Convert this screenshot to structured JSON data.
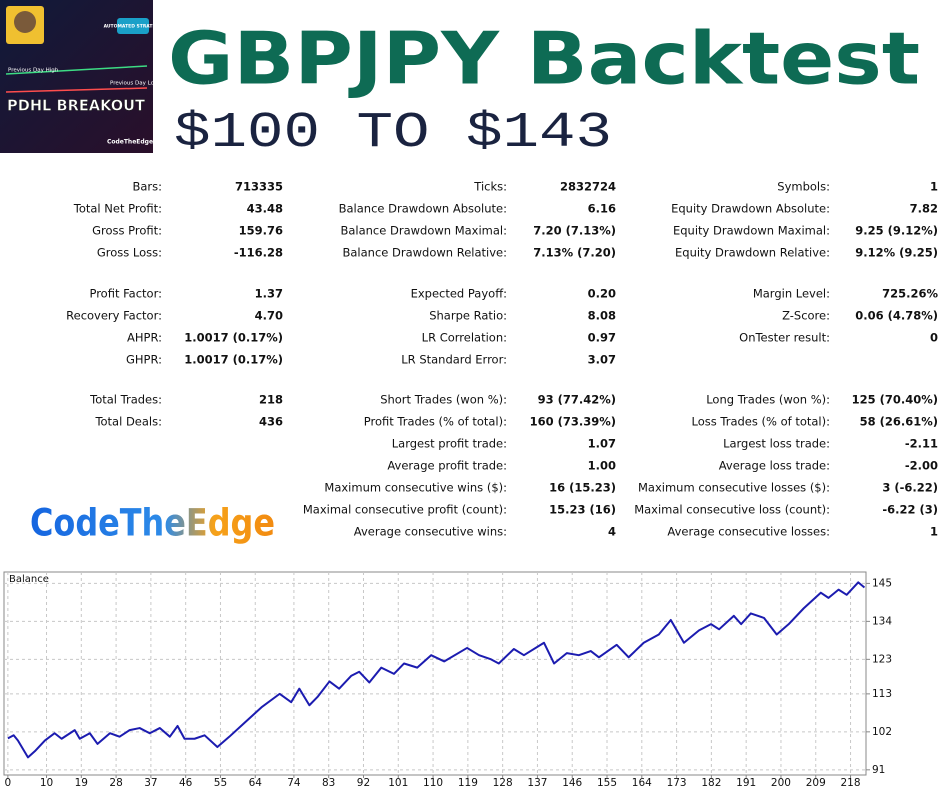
{
  "thumbnail": {
    "badge": "AUTOMATED STRATEGY",
    "high_label": "Previous Day High",
    "low_label": "Previous Day Low",
    "title": "PDHL BREAKOUT",
    "brand": "CodeTheEdge"
  },
  "header": {
    "title": "GBPJPY Backtest",
    "subtitle": "$100 TO $143"
  },
  "stats": {
    "sections": [
      {
        "rows": [
          [
            [
              "Bars:",
              "713335"
            ],
            [
              "Ticks:",
              "2832724"
            ],
            [
              "Symbols:",
              "1"
            ]
          ],
          [
            [
              "Total Net Profit:",
              "43.48"
            ],
            [
              "Balance Drawdown Absolute:",
              "6.16"
            ],
            [
              "Equity Drawdown Absolute:",
              "7.82"
            ]
          ],
          [
            [
              "Gross Profit:",
              "159.76"
            ],
            [
              "Balance Drawdown Maximal:",
              "7.20 (7.13%)"
            ],
            [
              "Equity Drawdown Maximal:",
              "9.25 (9.12%)"
            ]
          ],
          [
            [
              "Gross Loss:",
              "-116.28"
            ],
            [
              "Balance Drawdown Relative:",
              "7.13% (7.20)"
            ],
            [
              "Equity Drawdown Relative:",
              "9.12% (9.25)"
            ]
          ]
        ]
      },
      {
        "rows": [
          [
            [
              "Profit Factor:",
              "1.37"
            ],
            [
              "Expected Payoff:",
              "0.20"
            ],
            [
              "Margin Level:",
              "725.26%"
            ]
          ],
          [
            [
              "Recovery Factor:",
              "4.70"
            ],
            [
              "Sharpe Ratio:",
              "8.08"
            ],
            [
              "Z-Score:",
              "0.06 (4.78%)"
            ]
          ],
          [
            [
              "AHPR:",
              "1.0017 (0.17%)"
            ],
            [
              "LR Correlation:",
              "0.97"
            ],
            [
              "OnTester result:",
              "0"
            ]
          ],
          [
            [
              "GHPR:",
              "1.0017 (0.17%)"
            ],
            [
              "LR Standard Error:",
              "3.07"
            ],
            null
          ]
        ]
      },
      {
        "rows": [
          [
            [
              "Total Trades:",
              "218"
            ],
            [
              "Short Trades (won %):",
              "93 (77.42%)"
            ],
            [
              "Long Trades (won %):",
              "125 (70.40%)"
            ]
          ],
          [
            [
              "Total Deals:",
              "436"
            ],
            [
              "Profit Trades (% of total):",
              "160 (73.39%)"
            ],
            [
              "Loss Trades (% of total):",
              "58 (26.61%)"
            ]
          ],
          [
            null,
            [
              "Largest profit trade:",
              "1.07"
            ],
            [
              "Largest loss trade:",
              "-2.11"
            ]
          ],
          [
            null,
            [
              "Average profit trade:",
              "1.00"
            ],
            [
              "Average loss trade:",
              "-2.00"
            ]
          ],
          [
            null,
            [
              "Maximum consecutive wins ($):",
              "16 (15.23)"
            ],
            [
              "Maximum consecutive losses ($):",
              "3 (-6.22)"
            ]
          ],
          [
            null,
            [
              "Maximal consecutive profit (count):",
              "15.23 (16)"
            ],
            [
              "Maximal consecutive loss (count):",
              "-6.22 (3)"
            ]
          ],
          [
            null,
            [
              "Average consecutive wins:",
              "4"
            ],
            [
              "Average consecutive losses:",
              "1"
            ]
          ]
        ]
      }
    ]
  },
  "logo": "CodeTheEdge",
  "chart_data": {
    "type": "line",
    "title": "Balance",
    "x": [
      0,
      1.5,
      2.6,
      5.2,
      7,
      9.6,
      12.1,
      13.9,
      17.3,
      18.6,
      21.2,
      23.2,
      26.4,
      28.9,
      31.5,
      34.1,
      36.7,
      39.3,
      41.9,
      43.9,
      45.7,
      48.3,
      50.9,
      54.2,
      57.3,
      61.2,
      65.6,
      70.3,
      73.3,
      75.4,
      78,
      80.1,
      83.2,
      85.7,
      88.8,
      90.9,
      93.5,
      96.6,
      99.9,
      102.5,
      105.9,
      109.5,
      112.9,
      118.8,
      121.9,
      125,
      127,
      130.9,
      133.5,
      138.7,
      141.3,
      144.6,
      147.7,
      150.8,
      152.9,
      157.5,
      160.6,
      164.5,
      168.4,
      171.5,
      174.9,
      178.8,
      181.9,
      184,
      187.8,
      189.7,
      192.2,
      195.6,
      198.9,
      202,
      205.9,
      210.3,
      212.3,
      214.9,
      217,
      220,
      221.6
    ],
    "series": [
      {
        "name": "Balance",
        "color": "#1c1cb0",
        "values": [
          100.1,
          101,
          99.5,
          94.6,
          96.4,
          99.5,
          101.6,
          100,
          102.5,
          100,
          101.6,
          98.5,
          101.6,
          100.6,
          102.5,
          103.1,
          101.6,
          103.1,
          100.6,
          103.7,
          100,
          100,
          101,
          97.6,
          100.6,
          104.6,
          109.1,
          113,
          110.6,
          114.5,
          109.7,
          112.1,
          116.6,
          114.5,
          118.2,
          119.4,
          116.3,
          120.6,
          118.8,
          121.8,
          120.6,
          124.2,
          122.4,
          126.3,
          124.2,
          123,
          121.8,
          126,
          124.2,
          127.8,
          121.8,
          124.8,
          124.2,
          125.4,
          123.6,
          127.2,
          123.6,
          127.8,
          130.2,
          134.4,
          127.8,
          131.4,
          133.2,
          131.7,
          135.6,
          133.2,
          136.3,
          135,
          130.2,
          133.2,
          137.8,
          142.3,
          140.8,
          143.2,
          141.7,
          145.3,
          143.8
        ]
      }
    ],
    "xlim": [
      -1,
      222
    ],
    "ylim": [
      89.5,
      148.3
    ],
    "xticks": [
      0,
      10,
      19,
      28,
      37,
      46,
      55,
      64,
      74,
      83,
      92,
      101,
      110,
      119,
      128,
      137,
      146,
      155,
      164,
      173,
      182,
      191,
      200,
      209,
      218
    ],
    "yticks": [
      91,
      102,
      113,
      123,
      134,
      145
    ],
    "grid": true
  }
}
